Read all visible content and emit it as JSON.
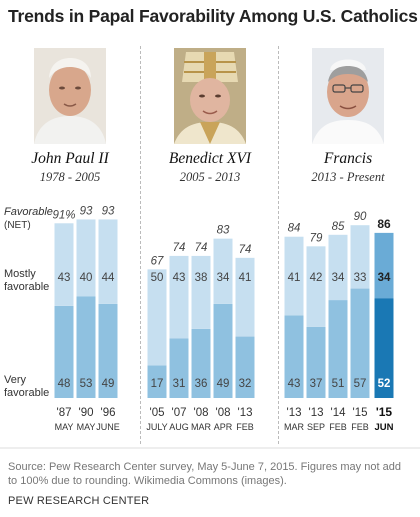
{
  "title": "Trends in Papal Favorability Among U.S. Catholics",
  "popes": [
    {
      "name": "John Paul II",
      "years": "1978 - 2005"
    },
    {
      "name": "Benedict XVI",
      "years": "2005 - 2013"
    },
    {
      "name": "Francis",
      "years": "2013 - Present"
    }
  ],
  "labels": {
    "favorable": "Favorable",
    "net": "(NET)",
    "mostly": "Mostly",
    "mostly2": "favorable",
    "very": "Very",
    "very2": "favorable"
  },
  "colors": {
    "mostly": "#c6dff0",
    "very": "#8fc1e0",
    "mostly_highlight": "#6aabd6",
    "very_highlight": "#1a78b4"
  },
  "chart_data": {
    "type": "bar",
    "stacked": true,
    "ylim": [
      0,
      100
    ],
    "series": [
      {
        "name": "Very favorable",
        "values": [
          48,
          53,
          49,
          17,
          31,
          36,
          49,
          32,
          43,
          37,
          51,
          57,
          52
        ]
      },
      {
        "name": "Mostly favorable",
        "values": [
          43,
          40,
          44,
          50,
          43,
          38,
          34,
          41,
          41,
          42,
          34,
          33,
          34
        ]
      }
    ],
    "totals": [
      91,
      93,
      93,
      67,
      74,
      74,
      83,
      74,
      84,
      79,
      85,
      90,
      86
    ],
    "total_labels": [
      "91%",
      "93",
      "93",
      "67",
      "74",
      "74",
      "83",
      "74",
      "84",
      "79",
      "85",
      "90",
      "86"
    ],
    "categories": [
      {
        "year": "'87",
        "month": "MAY",
        "group": 0
      },
      {
        "year": "'90",
        "month": "MAY",
        "group": 0
      },
      {
        "year": "'96",
        "month": "JUNE",
        "group": 0
      },
      {
        "year": "'05",
        "month": "JULY",
        "group": 1
      },
      {
        "year": "'07",
        "month": "AUG",
        "group": 1
      },
      {
        "year": "'08",
        "month": "MAR",
        "group": 1
      },
      {
        "year": "'08",
        "month": "APR",
        "group": 1
      },
      {
        "year": "'13",
        "month": "FEB",
        "group": 1
      },
      {
        "year": "'13",
        "month": "MAR",
        "group": 2
      },
      {
        "year": "'13",
        "month": "SEP",
        "group": 2
      },
      {
        "year": "'14",
        "month": "FEB",
        "group": 2
      },
      {
        "year": "'15",
        "month": "FEB",
        "group": 2
      },
      {
        "year": "'15",
        "month": "JUN",
        "group": 2,
        "highlight": true
      }
    ]
  },
  "source": "Source: Pew Research Center survey, May 5-June 7, 2015. Figures may not add to 100% due to rounding. Wikimedia Commons (images).",
  "org": "PEW RESEARCH CENTER"
}
